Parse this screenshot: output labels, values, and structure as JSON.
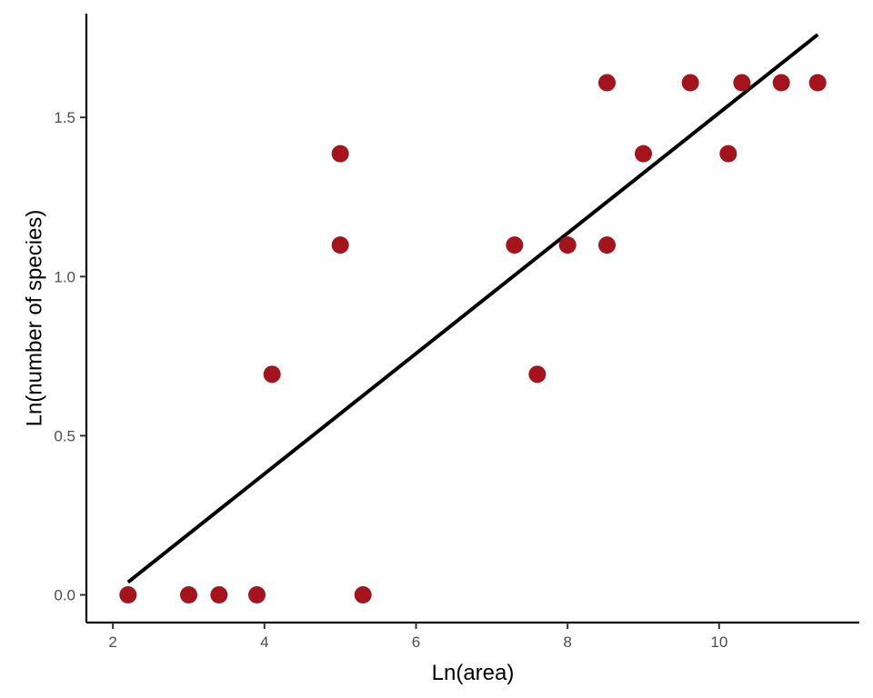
{
  "chart_data": {
    "type": "scatter",
    "title": "",
    "xlabel": "Ln(area)",
    "ylabel": "Ln(number of species)",
    "xlim": [
      1.65,
      11.85
    ],
    "ylim": [
      -0.087,
      1.826
    ],
    "xticks": [
      2,
      4,
      6,
      8,
      10
    ],
    "yticks": [
      0.0,
      0.5,
      1.0,
      1.5
    ],
    "xtick_labels": [
      "2",
      "4",
      "6",
      "8",
      "10"
    ],
    "ytick_labels": [
      "0.0",
      "0.5",
      "1.0",
      "1.5"
    ],
    "grid": false,
    "point_color": "#a3141d",
    "line_color": "#000000",
    "series": [
      {
        "type": "scatter",
        "points": [
          {
            "x": 2.2,
            "y": 0.0
          },
          {
            "x": 3.0,
            "y": 0.0
          },
          {
            "x": 3.4,
            "y": 0.0
          },
          {
            "x": 3.9,
            "y": 0.0
          },
          {
            "x": 4.1,
            "y": 0.693
          },
          {
            "x": 5.0,
            "y": 1.386
          },
          {
            "x": 5.0,
            "y": 1.099
          },
          {
            "x": 5.3,
            "y": 0.0
          },
          {
            "x": 7.3,
            "y": 1.099
          },
          {
            "x": 7.6,
            "y": 0.693
          },
          {
            "x": 8.0,
            "y": 1.099
          },
          {
            "x": 8.52,
            "y": 1.609
          },
          {
            "x": 8.52,
            "y": 1.099
          },
          {
            "x": 9.0,
            "y": 1.386
          },
          {
            "x": 9.62,
            "y": 1.609
          },
          {
            "x": 10.12,
            "y": 1.386
          },
          {
            "x": 10.3,
            "y": 1.609
          },
          {
            "x": 10.82,
            "y": 1.609
          },
          {
            "x": 11.3,
            "y": 1.609
          }
        ]
      },
      {
        "type": "line",
        "points": [
          {
            "x": 2.2,
            "y": 0.04
          },
          {
            "x": 11.3,
            "y": 1.76
          }
        ]
      }
    ]
  }
}
